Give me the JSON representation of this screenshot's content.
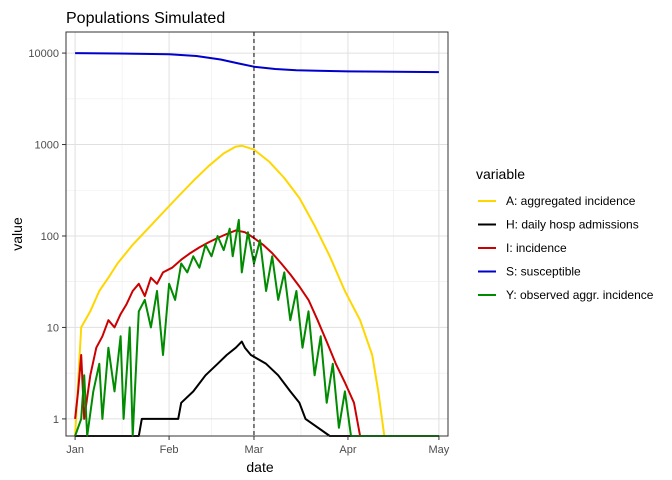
{
  "chart_data": {
    "type": "line",
    "title": "Populations Simulated",
    "xlabel": "date",
    "ylabel": "value",
    "y_scale": "log10",
    "xlim": [
      "2020-12-29",
      "2021-05-04"
    ],
    "ylim": [
      0.65,
      17000
    ],
    "x_ticks": [
      {
        "date": "2021-01-01",
        "label": "Jan"
      },
      {
        "date": "2021-02-01",
        "label": "Feb"
      },
      {
        "date": "2021-03-01",
        "label": "Mar"
      },
      {
        "date": "2021-04-01",
        "label": "Apr"
      },
      {
        "date": "2021-05-01",
        "label": "May"
      }
    ],
    "y_ticks": [
      {
        "value": 1,
        "label": "1"
      },
      {
        "value": 10,
        "label": "10"
      },
      {
        "value": 100,
        "label": "100"
      },
      {
        "value": 1000,
        "label": "1000"
      },
      {
        "value": 10000,
        "label": "10000"
      }
    ],
    "vline": {
      "date": "2021-03-01",
      "style": "dashed"
    },
    "grid": true,
    "legend": {
      "title": "variable",
      "position": "right"
    },
    "series": [
      {
        "name": "A: aggregated incidence",
        "color": "#FFD700",
        "points": [
          [
            "2021-01-01",
            0.5
          ],
          [
            "2021-01-03",
            10
          ],
          [
            "2021-01-06",
            15
          ],
          [
            "2021-01-09",
            25
          ],
          [
            "2021-01-12",
            35
          ],
          [
            "2021-01-15",
            50
          ],
          [
            "2021-01-20",
            80
          ],
          [
            "2021-01-25",
            120
          ],
          [
            "2021-01-30",
            180
          ],
          [
            "2021-02-04",
            270
          ],
          [
            "2021-02-09",
            400
          ],
          [
            "2021-02-14",
            580
          ],
          [
            "2021-02-19",
            800
          ],
          [
            "2021-02-23",
            950
          ],
          [
            "2021-02-25",
            970
          ],
          [
            "2021-03-01",
            880
          ],
          [
            "2021-03-06",
            650
          ],
          [
            "2021-03-11",
            430
          ],
          [
            "2021-03-16",
            260
          ],
          [
            "2021-03-21",
            130
          ],
          [
            "2021-03-26",
            60
          ],
          [
            "2021-03-31",
            25
          ],
          [
            "2021-04-05",
            12
          ],
          [
            "2021-04-09",
            5
          ],
          [
            "2021-04-11",
            2
          ],
          [
            "2021-04-13",
            0.5
          ]
        ]
      },
      {
        "name": "H: daily hosp admissions",
        "color": "#000000",
        "points": [
          [
            "2021-01-01",
            0.5
          ],
          [
            "2021-01-22",
            0.5
          ],
          [
            "2021-01-23",
            1
          ],
          [
            "2021-02-04",
            1
          ],
          [
            "2021-02-05",
            1.5
          ],
          [
            "2021-02-09",
            2
          ],
          [
            "2021-02-13",
            3
          ],
          [
            "2021-02-17",
            4
          ],
          [
            "2021-02-20",
            5
          ],
          [
            "2021-02-23",
            6
          ],
          [
            "2021-02-25",
            7
          ],
          [
            "2021-02-26",
            6
          ],
          [
            "2021-02-28",
            5
          ],
          [
            "2021-03-05",
            4
          ],
          [
            "2021-03-09",
            3
          ],
          [
            "2021-03-13",
            2
          ],
          [
            "2021-03-16",
            1.5
          ],
          [
            "2021-03-18",
            1
          ],
          [
            "2021-03-26",
            0.5
          ],
          [
            "2021-05-01",
            0.5
          ]
        ]
      },
      {
        "name": "I: incidence",
        "color": "#CC0000",
        "points": [
          [
            "2021-01-01",
            1
          ],
          [
            "2021-01-02",
            2
          ],
          [
            "2021-01-03",
            5
          ],
          [
            "2021-01-04",
            1
          ],
          [
            "2021-01-06",
            3
          ],
          [
            "2021-01-08",
            6
          ],
          [
            "2021-01-10",
            8
          ],
          [
            "2021-01-12",
            12
          ],
          [
            "2021-01-14",
            10
          ],
          [
            "2021-01-16",
            14
          ],
          [
            "2021-01-18",
            18
          ],
          [
            "2021-01-20",
            25
          ],
          [
            "2021-01-22",
            30
          ],
          [
            "2021-01-24",
            22
          ],
          [
            "2021-01-26",
            35
          ],
          [
            "2021-01-28",
            30
          ],
          [
            "2021-01-30",
            40
          ],
          [
            "2021-02-02",
            45
          ],
          [
            "2021-02-05",
            55
          ],
          [
            "2021-02-08",
            65
          ],
          [
            "2021-02-11",
            75
          ],
          [
            "2021-02-14",
            85
          ],
          [
            "2021-02-17",
            95
          ],
          [
            "2021-02-20",
            105
          ],
          [
            "2021-02-23",
            115
          ],
          [
            "2021-02-26",
            110
          ],
          [
            "2021-03-01",
            95
          ],
          [
            "2021-03-04",
            80
          ],
          [
            "2021-03-07",
            65
          ],
          [
            "2021-03-10",
            50
          ],
          [
            "2021-03-13",
            38
          ],
          [
            "2021-03-16",
            28
          ],
          [
            "2021-03-19",
            20
          ],
          [
            "2021-03-22",
            12
          ],
          [
            "2021-03-25",
            7
          ],
          [
            "2021-03-28",
            4
          ],
          [
            "2021-03-31",
            2.5
          ],
          [
            "2021-04-03",
            1.5
          ],
          [
            "2021-04-05",
            0.5
          ]
        ]
      },
      {
        "name": "S: susceptible",
        "color": "#0000CC",
        "points": [
          [
            "2021-01-01",
            10000
          ],
          [
            "2021-01-15",
            9900
          ],
          [
            "2021-02-01",
            9700
          ],
          [
            "2021-02-10",
            9300
          ],
          [
            "2021-02-18",
            8500
          ],
          [
            "2021-02-24",
            7700
          ],
          [
            "2021-03-01",
            7100
          ],
          [
            "2021-03-08",
            6700
          ],
          [
            "2021-03-15",
            6500
          ],
          [
            "2021-03-22",
            6400
          ],
          [
            "2021-04-01",
            6300
          ],
          [
            "2021-05-01",
            6200
          ]
        ]
      },
      {
        "name": "Y: observed aggr. incidence",
        "color": "#008B00",
        "points": [
          [
            "2021-01-01",
            0.5
          ],
          [
            "2021-01-03",
            1
          ],
          [
            "2021-01-04",
            3
          ],
          [
            "2021-01-05",
            0.6
          ],
          [
            "2021-01-07",
            2
          ],
          [
            "2021-01-09",
            4
          ],
          [
            "2021-01-10",
            1
          ],
          [
            "2021-01-12",
            6
          ],
          [
            "2021-01-14",
            2
          ],
          [
            "2021-01-16",
            8
          ],
          [
            "2021-01-17",
            1
          ],
          [
            "2021-01-19",
            10
          ],
          [
            "2021-01-20",
            0.6
          ],
          [
            "2021-01-22",
            15
          ],
          [
            "2021-01-24",
            20
          ],
          [
            "2021-01-26",
            10
          ],
          [
            "2021-01-28",
            25
          ],
          [
            "2021-01-30",
            5
          ],
          [
            "2021-02-01",
            30
          ],
          [
            "2021-02-03",
            20
          ],
          [
            "2021-02-05",
            50
          ],
          [
            "2021-02-07",
            40
          ],
          [
            "2021-02-09",
            60
          ],
          [
            "2021-02-11",
            45
          ],
          [
            "2021-02-13",
            80
          ],
          [
            "2021-02-15",
            60
          ],
          [
            "2021-02-17",
            100
          ],
          [
            "2021-02-19",
            70
          ],
          [
            "2021-02-21",
            120
          ],
          [
            "2021-02-22",
            60
          ],
          [
            "2021-02-24",
            150
          ],
          [
            "2021-02-25",
            40
          ],
          [
            "2021-02-27",
            110
          ],
          [
            "2021-03-01",
            50
          ],
          [
            "2021-03-03",
            90
          ],
          [
            "2021-03-05",
            25
          ],
          [
            "2021-03-07",
            60
          ],
          [
            "2021-03-09",
            20
          ],
          [
            "2021-03-11",
            40
          ],
          [
            "2021-03-13",
            12
          ],
          [
            "2021-03-15",
            25
          ],
          [
            "2021-03-17",
            6
          ],
          [
            "2021-03-19",
            15
          ],
          [
            "2021-03-21",
            3
          ],
          [
            "2021-03-23",
            8
          ],
          [
            "2021-03-25",
            1.5
          ],
          [
            "2021-03-27",
            4
          ],
          [
            "2021-03-29",
            0.8
          ],
          [
            "2021-03-31",
            2
          ],
          [
            "2021-04-02",
            0.6
          ],
          [
            "2021-04-07",
            0.5
          ],
          [
            "2021-04-10",
            0.6
          ],
          [
            "2021-04-12",
            0.5
          ],
          [
            "2021-05-01",
            0.5
          ]
        ]
      }
    ]
  }
}
